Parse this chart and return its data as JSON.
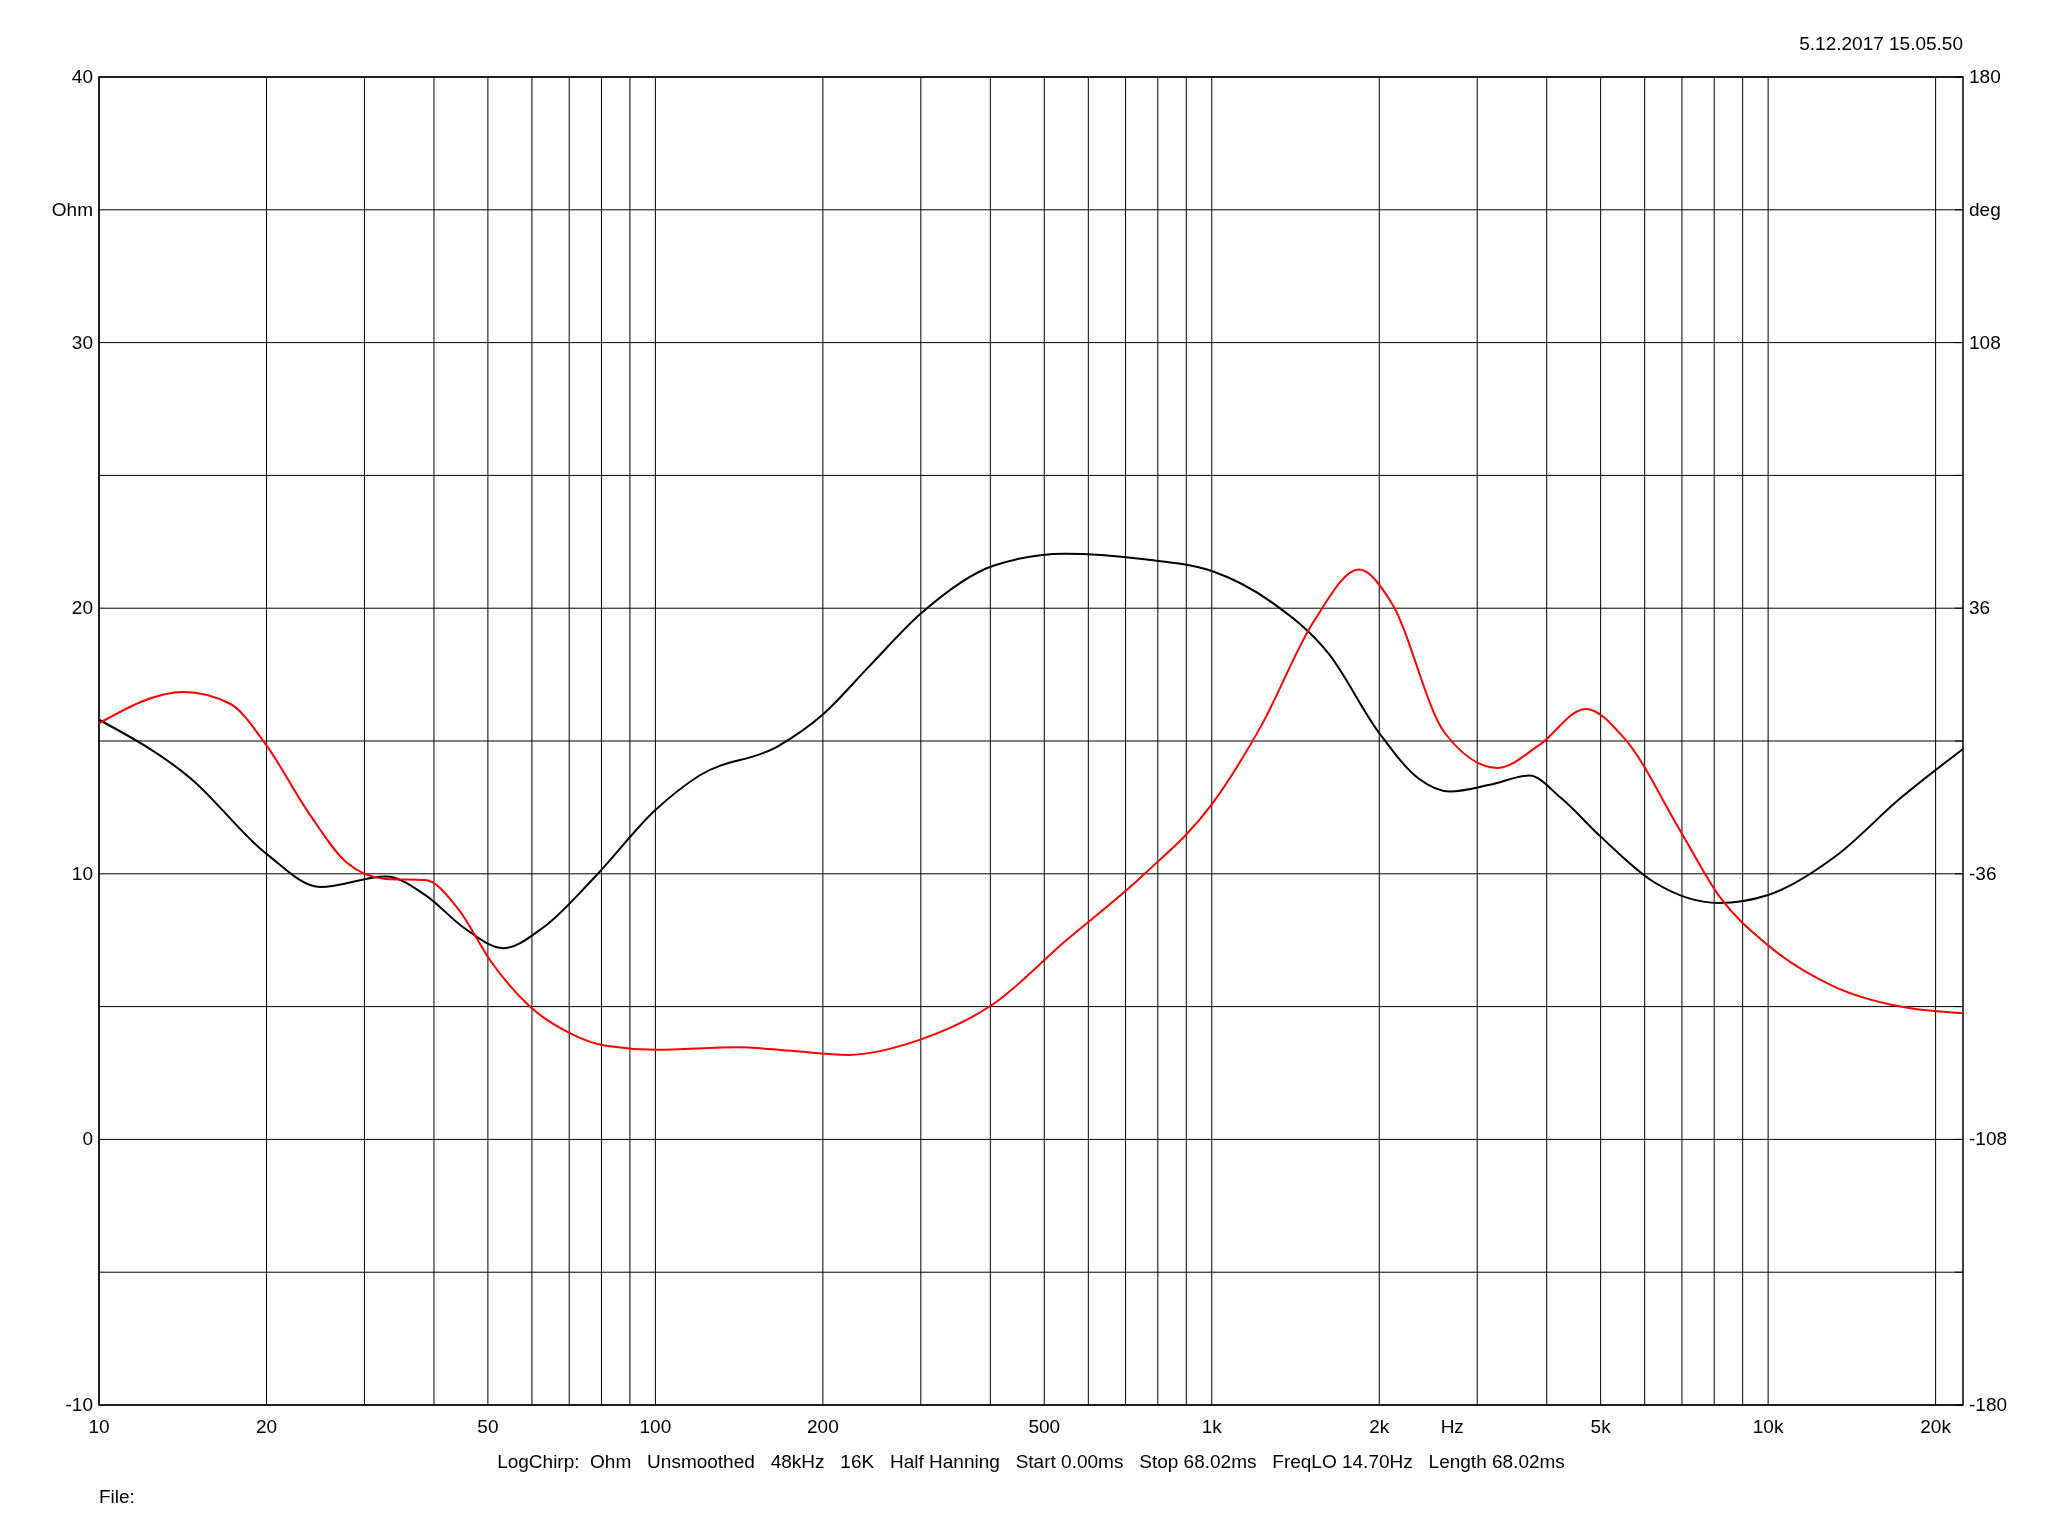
{
  "chart_data": {
    "type": "line",
    "xlabel": "Hz",
    "ylabel": "Ohm",
    "y2label": "deg",
    "log": "x",
    "grid": true,
    "line_style": "solid",
    "xlim": [
      10,
      22400
    ],
    "ylim": [
      -10,
      40
    ],
    "y2lim": [
      -180,
      180
    ],
    "xticks": [
      10,
      20,
      {
        "value": 30,
        "label": null
      },
      {
        "value": 40,
        "label": null
      },
      50,
      {
        "value": 60,
        "label": null
      },
      {
        "value": 70,
        "label": null
      },
      {
        "value": 80,
        "label": null
      },
      {
        "value": 90,
        "label": null
      },
      100,
      200,
      {
        "value": 300,
        "label": null
      },
      {
        "value": 400,
        "label": null
      },
      500,
      {
        "value": 600,
        "label": null
      },
      {
        "value": 700,
        "label": null
      },
      {
        "value": 800,
        "label": null
      },
      {
        "value": 900,
        "label": null
      },
      {
        "value": 1000,
        "label": "1k"
      },
      {
        "value": 2000,
        "label": "2k"
      },
      {
        "value": 3000,
        "label": null
      },
      {
        "value": 4000,
        "label": null
      },
      {
        "value": 5000,
        "label": "5k"
      },
      {
        "value": 6000,
        "label": null
      },
      {
        "value": 7000,
        "label": null
      },
      {
        "value": 8000,
        "label": null
      },
      {
        "value": 9000,
        "label": null
      },
      {
        "value": 10000,
        "label": "10k"
      },
      {
        "value": 20000,
        "label": "20k"
      }
    ],
    "yticks": [
      -10,
      {
        "value": -5,
        "label": null
      },
      0,
      {
        "value": 5,
        "label": null
      },
      10,
      {
        "value": 15,
        "label": null
      },
      20,
      {
        "value": 25,
        "label": null
      },
      30,
      {
        "value": 35,
        "label": null
      },
      40
    ],
    "y2ticks": [
      -180,
      {
        "value": -144,
        "label": null
      },
      -108,
      {
        "value": -72,
        "label": null
      },
      -36,
      {
        "value": 0,
        "label": null
      },
      36,
      {
        "value": 72,
        "label": null
      },
      108,
      {
        "value": 144,
        "label": null
      },
      180
    ],
    "series": [
      {
        "color": "#000000",
        "x": [
          10,
          14.6,
          20,
          25,
          32.8,
          38.6,
          45.4,
          53.3,
          62.6,
          78,
          100,
          120,
          166,
          200,
          242,
          300,
          405,
          545,
          750,
          1000,
          1286,
          1621,
          2000,
          2350,
          2680,
          3160,
          3720,
          4245,
          5000,
          6220,
          8160,
          10000,
          13200,
          17300,
          22400
        ],
        "values": [
          15.8,
          13.6,
          10.75,
          9.5,
          9.9,
          9.2,
          7.95,
          7.2,
          7.95,
          9.9,
          12.4,
          13.7,
          14.8,
          16.0,
          17.8,
          19.8,
          21.6,
          22.05,
          21.85,
          21.4,
          20.2,
          18.3,
          15.3,
          13.6,
          13.1,
          13.35,
          13.7,
          12.85,
          11.4,
          9.7,
          8.9,
          9.2,
          10.65,
          12.85,
          14.7
        ]
      },
      {
        "color": "#ff0000",
        "axis": "y2",
        "x": [
          10,
          14.2,
          17.2,
          20,
          23.7,
          27.9,
          32.8,
          38.6,
          44.2,
          50.6,
          59.5,
          70,
          82,
          100,
          141,
          175,
          222,
          300,
          405,
          545,
          750,
          1000,
          1227,
          1525,
          1840,
          2100,
          2620,
          3270,
          3870,
          4700,
          5530,
          6950,
          8160,
          10000,
          13200,
          17300,
          22400
        ],
        "values": [
          4.8,
          13.3,
          10.1,
          -1.2,
          -19,
          -33,
          -37.4,
          -37.7,
          -45.5,
          -59.7,
          -72,
          -79.1,
          -82.7,
          -83.7,
          -83,
          -84,
          -85.1,
          -80.9,
          -71.3,
          -54.3,
          -36.6,
          -17.2,
          4.1,
          32.4,
          46.5,
          37.7,
          2.3,
          -7.3,
          -1.2,
          8.7,
          0.5,
          -24.3,
          -42,
          -55.4,
          -66.7,
          -72,
          -73.8
        ]
      }
    ],
    "annotations": [
      "5.12.2017 15.05.50",
      "LogChirp:  Ohm   Unsmoothed   48kHz   16K   Half Hanning   Start 0.00ms   Stop 68.02ms   FreqLO 14.70Hz   Length 68.02ms",
      "File:"
    ]
  }
}
